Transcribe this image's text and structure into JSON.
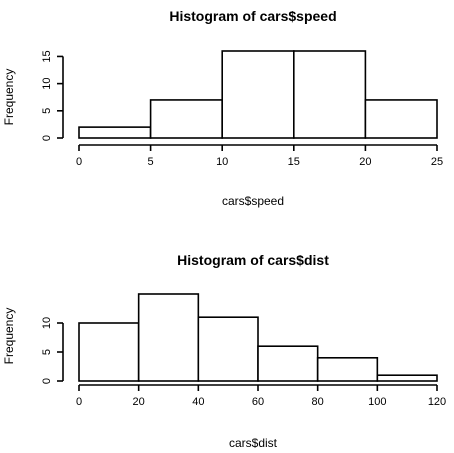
{
  "chart_data": [
    {
      "type": "bar",
      "title": "Histogram of cars$speed",
      "xlabel": "cars$speed",
      "ylabel": "Frequency",
      "bins": [
        [
          0,
          5
        ],
        [
          5,
          10
        ],
        [
          10,
          15
        ],
        [
          15,
          20
        ],
        [
          20,
          25
        ]
      ],
      "values": [
        2,
        7,
        16,
        16,
        7
      ],
      "xticks": [
        "0",
        "5",
        "10",
        "15",
        "20",
        "25"
      ],
      "yticks": [
        "0",
        "5",
        "10",
        "15"
      ],
      "xlim": [
        0,
        25
      ],
      "ylim": [
        0,
        16
      ],
      "grid": false
    },
    {
      "type": "bar",
      "title": "Histogram of cars$dist",
      "xlabel": "cars$dist",
      "ylabel": "Frequency",
      "bins": [
        [
          0,
          20
        ],
        [
          20,
          40
        ],
        [
          40,
          60
        ],
        [
          60,
          80
        ],
        [
          80,
          100
        ],
        [
          100,
          120
        ]
      ],
      "values": [
        10,
        15,
        11,
        6,
        4,
        1
      ],
      "xticks": [
        "0",
        "20",
        "40",
        "60",
        "80",
        "100",
        "120"
      ],
      "yticks": [
        "0",
        "5",
        "10"
      ],
      "xlim": [
        0,
        120
      ],
      "ylim": [
        0,
        15
      ],
      "grid": false
    }
  ]
}
